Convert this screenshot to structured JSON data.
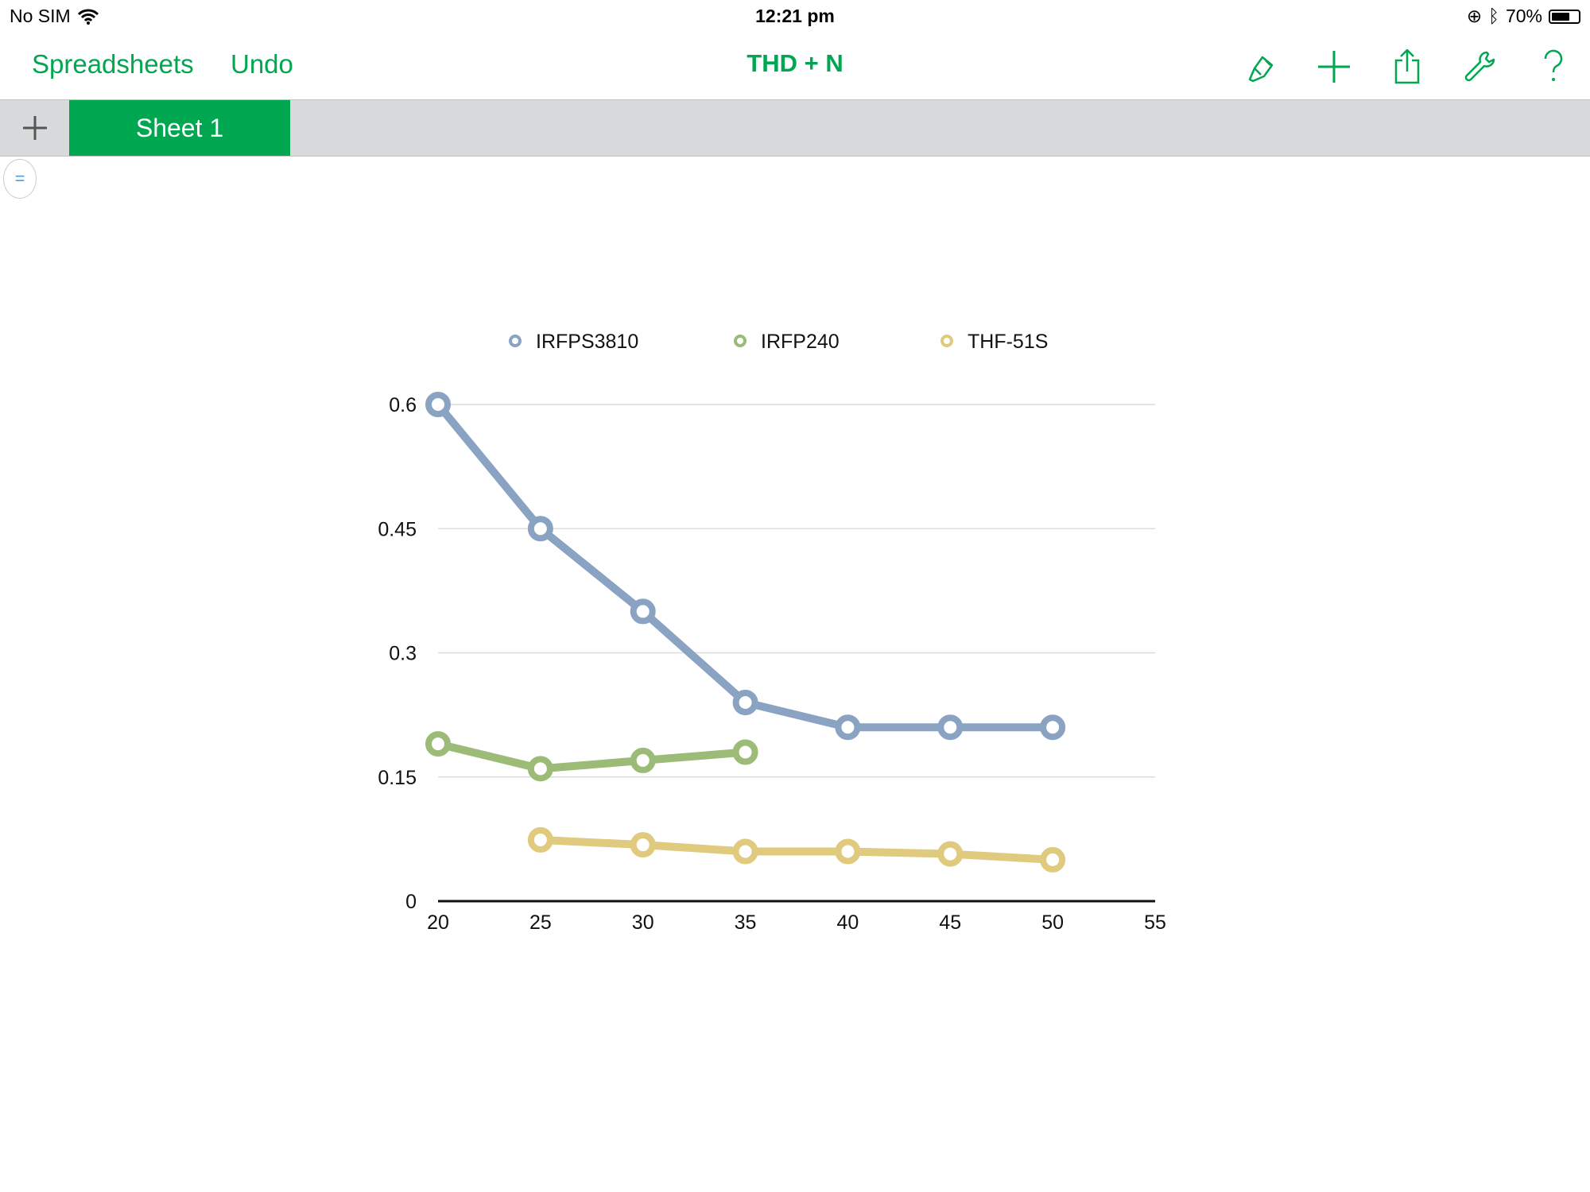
{
  "status_bar": {
    "carrier": "No SIM",
    "time": "12:21 pm",
    "battery": "70%",
    "battery_level": 0.7
  },
  "nav": {
    "back_label": "Spreadsheets",
    "undo_label": "Undo",
    "title": "THD + N",
    "icons": [
      "format-brush-icon",
      "add-icon",
      "share-icon",
      "wrench-icon",
      "help-icon"
    ]
  },
  "tabs": {
    "add_icon": "plus-icon",
    "sheets": [
      {
        "label": "Sheet 1",
        "active": true
      }
    ]
  },
  "colors": {
    "accent": "#00a650",
    "tabbar": "#d9dadc"
  },
  "chart_data": {
    "type": "line",
    "title": "",
    "xlabel": "",
    "ylabel": "",
    "x_ticks": [
      "20",
      "25",
      "30",
      "35",
      "40",
      "45",
      "50",
      "55"
    ],
    "y_ticks": [
      "0",
      "0.15",
      "0.3",
      "0.45",
      "0.6"
    ],
    "xlim": [
      20,
      55
    ],
    "ylim": [
      0,
      0.6
    ],
    "grid": "horizontal",
    "legend_position": "top",
    "series": [
      {
        "name": "IRFPS3810",
        "color": "#8aa3c2",
        "x": [
          20,
          25,
          30,
          35,
          40,
          45,
          50
        ],
        "values": [
          0.6,
          0.45,
          0.35,
          0.24,
          0.21,
          0.21,
          0.21
        ]
      },
      {
        "name": "IRFP240",
        "color": "#9bbb76",
        "x": [
          20,
          25,
          30,
          35
        ],
        "values": [
          0.19,
          0.16,
          0.17,
          0.18
        ]
      },
      {
        "name": "THF-51S",
        "color": "#dfca7e",
        "x": [
          25,
          30,
          35,
          40,
          45,
          50
        ],
        "values": [
          0.074,
          0.068,
          0.06,
          0.06,
          0.057,
          0.05
        ]
      }
    ]
  }
}
